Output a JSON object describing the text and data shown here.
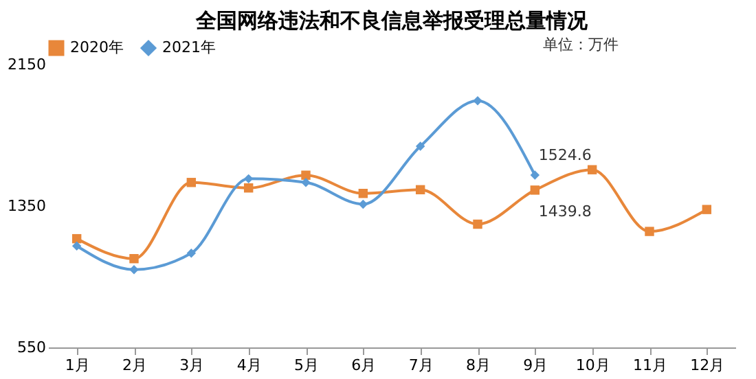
{
  "chart_data": {
    "type": "line",
    "title": "全国网络违法和不良信息举报受理总量情况",
    "annotations": [
      "单位：万件"
    ],
    "categories": [
      "1月",
      "2月",
      "3月",
      "4月",
      "5月",
      "6月",
      "7月",
      "8月",
      "9月",
      "10月",
      "11月",
      "12月"
    ],
    "series": [
      {
        "name": "2020年",
        "color": "#e8873a",
        "marker": "square",
        "values": [
          1165,
          1052,
          1483,
          1452,
          1524,
          1421,
          1442,
          1247,
          1439.8,
          1555,
          1206,
          1330
        ],
        "value_labels": [
          null,
          null,
          null,
          null,
          null,
          null,
          null,
          null,
          "1439.8",
          null,
          null,
          null
        ]
      },
      {
        "name": "2021年",
        "color": "#5b9bd5",
        "marker": "diamond",
        "values": [
          1124,
          990,
          1083,
          1504,
          1483,
          1360,
          1688,
          1945,
          1524.6,
          null,
          null,
          null
        ],
        "value_labels": [
          null,
          null,
          null,
          null,
          null,
          null,
          null,
          null,
          "1524.6",
          null,
          null,
          null
        ]
      }
    ],
    "ylim": [
      550,
      2150
    ],
    "yticks": [
      550,
      1350,
      2150
    ],
    "grid": false,
    "legend": "top"
  }
}
